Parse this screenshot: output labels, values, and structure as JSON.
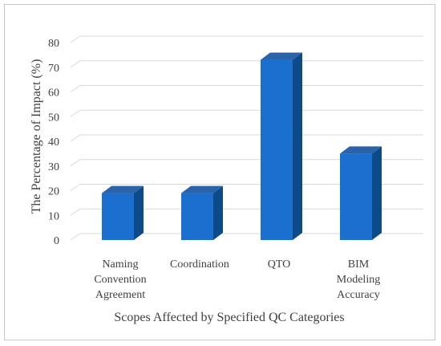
{
  "chart_data": {
    "type": "bar",
    "style": "3d-column",
    "categories": [
      [
        "Naming",
        "Convention",
        "Agreement"
      ],
      [
        "Coordination"
      ],
      [
        "QTO"
      ],
      [
        "BIM",
        "Modeling",
        "Accuracy"
      ]
    ],
    "values": [
      19,
      19,
      73,
      35
    ],
    "xlabel": "Scopes Affected by Specified QC Categories",
    "ylabel": "The Percentage of Impact (%)",
    "ylim": [
      0,
      80
    ],
    "yticks": [
      0,
      10,
      20,
      30,
      40,
      50,
      60,
      70,
      80
    ],
    "grid": true,
    "legend": "none",
    "colors": {
      "front": "#1a6fcf",
      "side": "#0d4a8a",
      "top": "#2a63a8",
      "grid": "#d9d9d9",
      "text": "#404040"
    }
  }
}
